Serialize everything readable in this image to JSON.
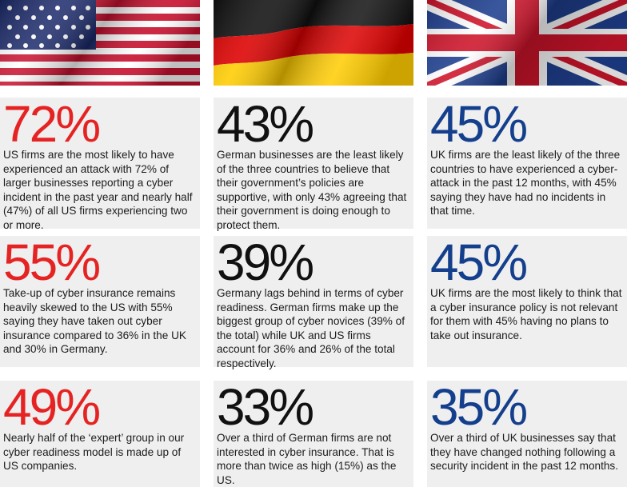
{
  "flags": {
    "us": {
      "icon": "us-flag-icon",
      "colors": {
        "red": "#c8102e",
        "white": "#ffffff",
        "blue": "#1b2a6b"
      }
    },
    "de": {
      "icon": "german-flag-icon",
      "colors": {
        "black": "#111111",
        "red": "#dd0000",
        "gold": "#ffcc00"
      }
    },
    "uk": {
      "icon": "uk-flag-icon",
      "colors": {
        "red": "#cf142b",
        "white": "#ffffff",
        "blue": "#1f3f8f"
      }
    }
  },
  "colors": {
    "us_accent": "#e52323",
    "de_accent": "#111111",
    "uk_accent": "#143f8c",
    "card_bg": "#efefef"
  },
  "columns": {
    "us": [
      {
        "stat": "72%",
        "text": "US firms are the most likely to have experienced an attack with 72% of larger businesses reporting a cyber incident in the past year and nearly half (47%) of all US firms experiencing two or more."
      },
      {
        "stat": "55%",
        "text": "Take-up of cyber insurance remains heavily skewed to the US with 55% saying they have taken out cyber insurance compared to 36% in the UK and 30% in Germany."
      },
      {
        "stat": "49%",
        "text": "Nearly half of the ‘expert’ group in our cyber readiness model is made up of US companies."
      }
    ],
    "de": [
      {
        "stat": "43%",
        "text": "German businesses are the least likely of the three countries to believe that their government’s policies are supportive, with only 43% agreeing that their government is doing enough to protect them."
      },
      {
        "stat": "39%",
        "text": "Germany lags behind in terms of cyber readiness. German firms make up the biggest group of cyber novices (39% of the total) while UK and US firms account for 36% and 26% of the total respectively."
      },
      {
        "stat": "33%",
        "text": "Over a third of German firms are not interested in cyber insurance. That is more than twice as high (15%) as the US."
      }
    ],
    "uk": [
      {
        "stat": "45%",
        "text": "UK firms are the least likely of the three countries to have experienced a cyber-attack in the past 12 months, with 45% saying they have had no incidents in that time."
      },
      {
        "stat": "45%",
        "text": "UK firms are the most likely to think that a cyber insurance policy is not relevant for them with 45% having no plans to take out insurance."
      },
      {
        "stat": "35%",
        "text": "Over a third of UK businesses say that they have changed nothing following a security incident in the past 12 months."
      }
    ]
  }
}
